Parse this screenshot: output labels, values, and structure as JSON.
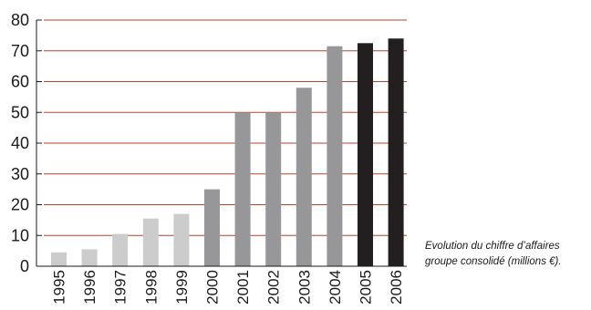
{
  "chart_data": {
    "type": "bar",
    "categories": [
      "1995",
      "1996",
      "1997",
      "1998",
      "1999",
      "2000",
      "2001",
      "2002",
      "2003",
      "2004",
      "2005",
      "2006"
    ],
    "values": [
      4.5,
      5.5,
      10.5,
      15.5,
      17,
      25,
      50,
      50,
      58,
      71.5,
      72.5,
      74
    ],
    "ylim": [
      0,
      80
    ],
    "yticks": [
      0,
      10,
      20,
      30,
      40,
      50,
      60,
      70,
      80
    ],
    "grid": true,
    "grid_color": "#b5452e",
    "bar_colors": [
      "#cccccc",
      "#cccccc",
      "#cccccc",
      "#cccccc",
      "#cccccc",
      "#979799",
      "#979799",
      "#979799",
      "#979799",
      "#979799",
      "#231f20",
      "#231f20"
    ],
    "title": "",
    "xlabel": "",
    "ylabel": ""
  },
  "caption": {
    "line1": "Evolution du chiffre d’affaires",
    "line2": "groupe consolidé (millions €)."
  }
}
